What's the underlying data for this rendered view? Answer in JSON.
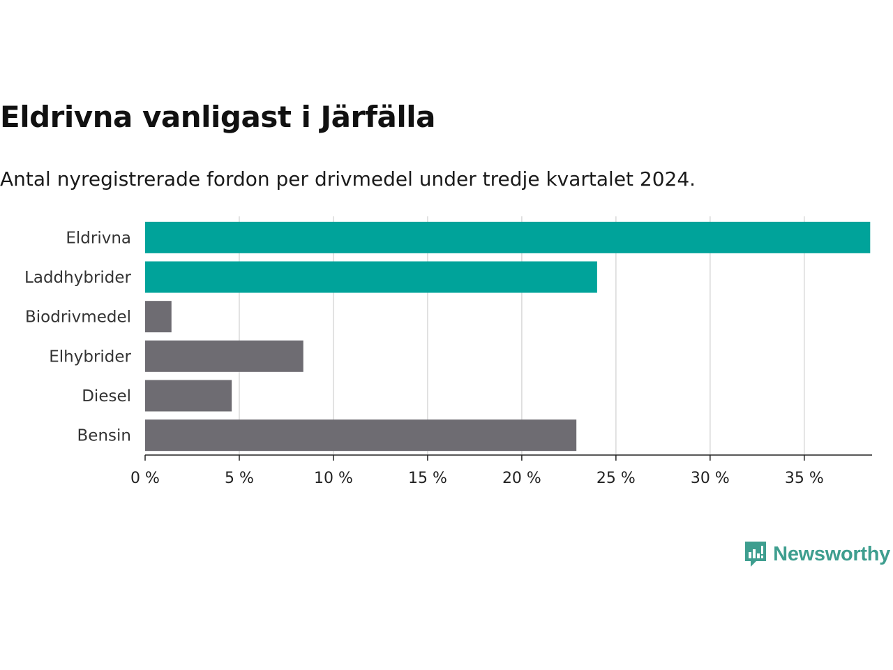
{
  "chart_data": {
    "type": "bar",
    "orientation": "horizontal",
    "title": "Eldrivna vanligast i Järfälla",
    "subtitle": "Antal nyregistrerade fordon per drivmedel under tredje kvartalet 2024.",
    "categories": [
      "Eldrivna",
      "Laddhybrider",
      "Biodrivmedel",
      "Elhybrider",
      "Diesel",
      "Bensin"
    ],
    "values": [
      38.5,
      24.0,
      1.4,
      8.4,
      4.6,
      22.9
    ],
    "colors": [
      "#00a39a",
      "#00a39a",
      "#6e6c72",
      "#6e6c72",
      "#6e6c72",
      "#6e6c72"
    ],
    "xlim": [
      0,
      38.6
    ],
    "xticks": [
      0,
      5,
      10,
      15,
      20,
      25,
      30,
      35
    ],
    "tick_labels": [
      "0 %",
      "5 %",
      "10 %",
      "15 %",
      "20 %",
      "25 %",
      "30 %",
      "35 %"
    ],
    "xlabel": "",
    "ylabel": "",
    "grid": true
  },
  "brand": {
    "name": "Newsworthy",
    "color": "#3e9e8f"
  }
}
